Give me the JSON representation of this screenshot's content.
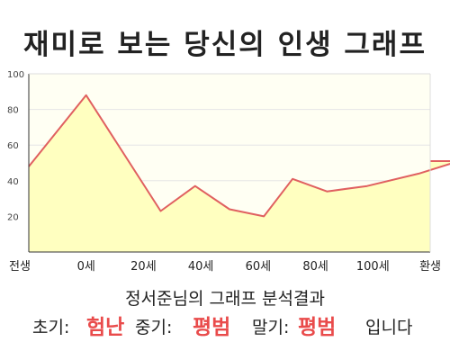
{
  "header": {
    "title": "재미로 보는 당신의 인생 그래프"
  },
  "result": {
    "heading": "정서준님의 그래프 분석결과",
    "early_label": "초기:",
    "early_value": "험난",
    "mid_label": "중기:",
    "mid_value": "평범",
    "late_label": "말기:",
    "late_value": "평범",
    "suffix": "입니다"
  },
  "colors": {
    "line": "#e06060",
    "fill": "#ffffc0",
    "accent": "#e94b4b"
  },
  "chart_data": {
    "type": "area",
    "title": "",
    "xlabel": "",
    "ylabel": "",
    "x_ticks": [
      "전생",
      "0세",
      "20세",
      "40세",
      "60세",
      "80세",
      "100세",
      "환생"
    ],
    "y_ticks": [
      "20",
      "40",
      "60",
      "80",
      "100"
    ],
    "ylim": [
      0,
      100
    ],
    "grid": true,
    "series": [
      {
        "x": [
          0,
          1,
          2.3,
          2.9,
          3.5,
          4.1,
          4.6,
          5.2,
          5.9,
          6.8,
          7.5
        ],
        "values": [
          48,
          88,
          23,
          37,
          24,
          20,
          41,
          34,
          37,
          44,
          51
        ]
      }
    ]
  }
}
